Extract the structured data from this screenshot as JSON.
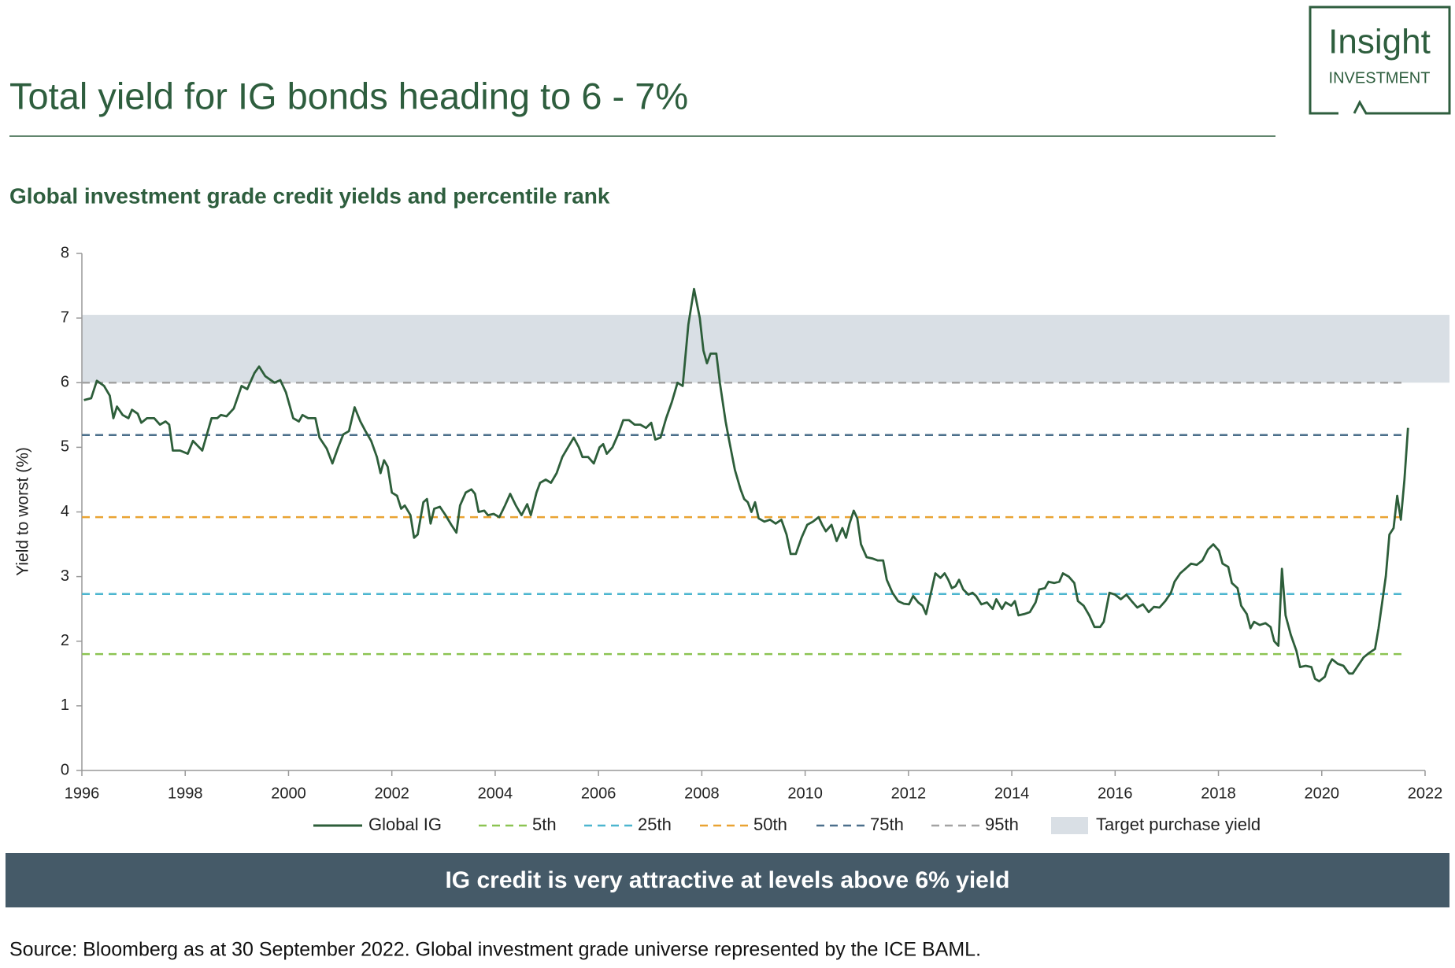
{
  "logo": {
    "name": "Insight",
    "tagline": "INVESTMENT"
  },
  "chart_data": {
    "type": "line",
    "title": "Total yield for IG bonds heading to 6 - 7%",
    "subtitle": "Global investment grade credit yields and percentile rank",
    "y_label": "Yield to worst (%)",
    "x": [
      1996.04,
      1996.18,
      1996.29,
      1996.43,
      1996.54,
      1996.61,
      1996.68,
      1996.79,
      1996.9,
      1996.97,
      1997.08,
      1997.15,
      1997.26,
      1997.4,
      1997.51,
      1997.62,
      1997.69,
      1997.76,
      1997.9,
      1998.05,
      1998.15,
      1998.33,
      1998.51,
      1998.62,
      1998.69,
      1998.8,
      1998.94,
      1999.09,
      1999.2,
      1999.34,
      1999.43,
      1999.55,
      1999.73,
      1999.84,
      1999.95,
      2000.09,
      2000.2,
      2000.27,
      2000.38,
      2000.52,
      2000.6,
      2000.74,
      2000.85,
      2000.96,
      2001.06,
      2001.17,
      2001.28,
      2001.39,
      2001.49,
      2001.6,
      2001.71,
      2001.78,
      2001.85,
      2001.92,
      2002.0,
      2002.1,
      2002.18,
      2002.25,
      2002.36,
      2002.43,
      2002.5,
      2002.61,
      2002.68,
      2002.75,
      2002.82,
      2002.93,
      2003.04,
      2003.15,
      2003.25,
      2003.32,
      2003.43,
      2003.54,
      2003.61,
      2003.68,
      2003.79,
      2003.86,
      2003.97,
      2004.08,
      2004.19,
      2004.29,
      2004.4,
      2004.51,
      2004.62,
      2004.69,
      2004.8,
      2004.87,
      2004.98,
      2005.08,
      2005.19,
      2005.3,
      2005.41,
      2005.52,
      2005.62,
      2005.69,
      2005.8,
      2005.91,
      2006.02,
      2006.09,
      2006.16,
      2006.27,
      2006.38,
      2006.48,
      2006.59,
      2006.7,
      2006.81,
      2006.92,
      2007.02,
      2007.1,
      2007.2,
      2007.31,
      2007.42,
      2007.53,
      2007.63,
      2007.74,
      2007.85,
      2007.96,
      2008.03,
      2008.1,
      2008.17,
      2008.28,
      2008.35,
      2008.46,
      2008.53,
      2008.64,
      2008.75,
      2008.82,
      2008.89,
      2008.96,
      2009.03,
      2009.1,
      2009.21,
      2009.32,
      2009.43,
      2009.54,
      2009.64,
      2009.72,
      2009.82,
      2009.93,
      2010.04,
      2010.15,
      2010.26,
      2010.33,
      2010.4,
      2010.51,
      2010.61,
      2010.72,
      2010.79,
      2010.86,
      2010.94,
      2011.01,
      2011.08,
      2011.19,
      2011.3,
      2011.4,
      2011.51,
      2011.58,
      2011.69,
      2011.8,
      2011.91,
      2012.01,
      2012.09,
      2012.19,
      2012.27,
      2012.34,
      2012.45,
      2012.52,
      2012.62,
      2012.7,
      2012.77,
      2012.84,
      2012.91,
      2012.98,
      2013.06,
      2013.16,
      2013.24,
      2013.31,
      2013.41,
      2013.52,
      2013.63,
      2013.7,
      2013.81,
      2013.88,
      2013.99,
      2014.06,
      2014.13,
      2014.24,
      2014.35,
      2014.46,
      2014.53,
      2014.64,
      2014.71,
      2014.82,
      2014.92,
      2014.99,
      2015.1,
      2015.21,
      2015.28,
      2015.39,
      2015.5,
      2015.6,
      2015.71,
      2015.78,
      2015.89,
      2016.0,
      2016.11,
      2016.22,
      2016.32,
      2016.43,
      2016.54,
      2016.65,
      2016.75,
      2016.86,
      2016.97,
      2017.08,
      2017.15,
      2017.26,
      2017.36,
      2017.47,
      2017.58,
      2017.69,
      2017.8,
      2017.9,
      2018.01,
      2018.08,
      2018.19,
      2018.26,
      2018.37,
      2018.44,
      2018.55,
      2018.62,
      2018.69,
      2018.8,
      2018.91,
      2019.01,
      2019.08,
      2019.16,
      2019.23,
      2019.3,
      2019.4,
      2019.51,
      2019.58,
      2019.69,
      2019.8,
      2019.87,
      2019.95,
      2020.06,
      2020.13,
      2020.2,
      2020.31,
      2020.42,
      2020.53,
      2020.6,
      2020.7,
      2020.81,
      2020.92,
      2021.03,
      2021.1,
      2021.17,
      2021.24,
      2021.31,
      2021.39,
      2021.46,
      2021.53,
      2021.6,
      2021.67
    ],
    "series": [
      {
        "name": "Global IG",
        "color": "#2d5e3a",
        "values": [
          5.73,
          5.76,
          6.03,
          5.95,
          5.8,
          5.45,
          5.63,
          5.5,
          5.45,
          5.58,
          5.52,
          5.38,
          5.45,
          5.45,
          5.35,
          5.4,
          5.35,
          4.95,
          4.95,
          4.9,
          5.1,
          4.95,
          5.45,
          5.45,
          5.5,
          5.48,
          5.6,
          5.95,
          5.9,
          6.15,
          6.25,
          6.1,
          6.0,
          6.04,
          5.85,
          5.45,
          5.4,
          5.5,
          5.45,
          5.45,
          5.15,
          4.98,
          4.75,
          5.0,
          5.2,
          5.25,
          5.62,
          5.4,
          5.25,
          5.1,
          4.85,
          4.6,
          4.8,
          4.7,
          4.3,
          4.25,
          4.05,
          4.1,
          3.95,
          3.6,
          3.65,
          4.15,
          4.2,
          3.82,
          4.05,
          4.08,
          3.95,
          3.8,
          3.68,
          4.1,
          4.3,
          4.35,
          4.28,
          4.0,
          4.02,
          3.95,
          3.97,
          3.92,
          4.1,
          4.28,
          4.1,
          3.95,
          4.12,
          3.95,
          4.3,
          4.45,
          4.5,
          4.45,
          4.6,
          4.85,
          5.0,
          5.15,
          5.0,
          4.85,
          4.85,
          4.75,
          5.0,
          5.05,
          4.9,
          5.0,
          5.2,
          5.42,
          5.42,
          5.35,
          5.35,
          5.3,
          5.38,
          5.12,
          5.15,
          5.45,
          5.7,
          6.0,
          5.95,
          6.9,
          7.45,
          7.0,
          6.5,
          6.3,
          6.45,
          6.45,
          6.0,
          5.4,
          5.1,
          4.65,
          4.35,
          4.2,
          4.15,
          4.0,
          4.15,
          3.9,
          3.85,
          3.88,
          3.82,
          3.88,
          3.65,
          3.35,
          3.35,
          3.6,
          3.8,
          3.85,
          3.92,
          3.8,
          3.7,
          3.8,
          3.55,
          3.75,
          3.6,
          3.82,
          4.02,
          3.9,
          3.5,
          3.3,
          3.28,
          3.25,
          3.25,
          2.95,
          2.75,
          2.62,
          2.58,
          2.57,
          2.7,
          2.6,
          2.55,
          2.42,
          2.8,
          3.05,
          2.98,
          3.05,
          2.95,
          2.82,
          2.85,
          2.95,
          2.8,
          2.72,
          2.75,
          2.7,
          2.57,
          2.6,
          2.5,
          2.65,
          2.5,
          2.6,
          2.55,
          2.62,
          2.4,
          2.42,
          2.45,
          2.6,
          2.8,
          2.82,
          2.92,
          2.9,
          2.92,
          3.05,
          3.0,
          2.9,
          2.62,
          2.55,
          2.4,
          2.22,
          2.22,
          2.3,
          2.75,
          2.72,
          2.65,
          2.72,
          2.62,
          2.52,
          2.57,
          2.45,
          2.53,
          2.52,
          2.62,
          2.75,
          2.92,
          3.05,
          3.12,
          3.2,
          3.18,
          3.25,
          3.42,
          3.5,
          3.4,
          3.2,
          3.15,
          2.9,
          2.82,
          2.55,
          2.42,
          2.2,
          2.3,
          2.25,
          2.28,
          2.22,
          2.0,
          1.93,
          3.12,
          2.4,
          2.1,
          1.85,
          1.6,
          1.62,
          1.6,
          1.42,
          1.38,
          1.45,
          1.62,
          1.72,
          1.65,
          1.62,
          1.5,
          1.5,
          1.62,
          1.75,
          1.82,
          1.88,
          2.2,
          2.6,
          3.0,
          3.65,
          3.75,
          4.25,
          3.88,
          4.5,
          5.3
        ]
      }
    ],
    "reference_lines": [
      {
        "name": "5th",
        "value": 1.8,
        "color": "#8cc452"
      },
      {
        "name": "25th",
        "value": 2.73,
        "color": "#4cb6cf"
      },
      {
        "name": "50th",
        "value": 3.92,
        "color": "#e9a332"
      },
      {
        "name": "75th",
        "value": 5.19,
        "color": "#4b6f8b"
      },
      {
        "name": "95th",
        "value": 6.0,
        "color": "#a3a3a3"
      }
    ],
    "band": {
      "name": "Target purchase yield",
      "range": [
        6.0,
        7.05
      ],
      "color": "#d9dfe5"
    },
    "xlim": [
      1996,
      2022
    ],
    "xticks": [
      1996,
      1998,
      2000,
      2002,
      2004,
      2006,
      2008,
      2010,
      2012,
      2014,
      2016,
      2018,
      2020,
      2022
    ],
    "ylim": [
      0,
      8
    ],
    "yticks": [
      0,
      1,
      2,
      3,
      4,
      5,
      6,
      7,
      8
    ],
    "annotation": "IG credit is very attractive at levels above 6% yield",
    "source": "Source: Bloomberg as at 30 September 2022. Global investment grade universe represented by the ICE BAML."
  }
}
